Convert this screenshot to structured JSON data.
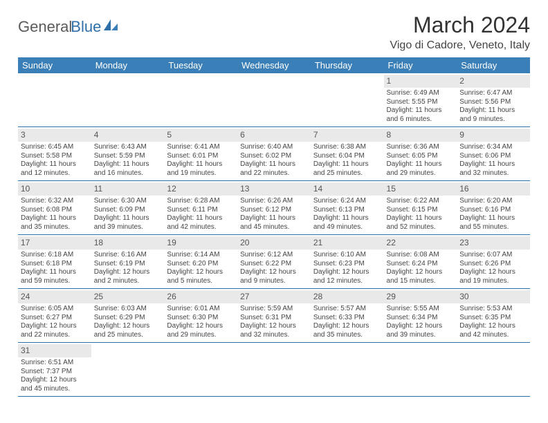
{
  "logo": {
    "text1": "General",
    "text2": "Blue"
  },
  "title": "March 2024",
  "location": "Vigo di Cadore, Veneto, Italy",
  "colors": {
    "header_bg": "#3b7fb8",
    "header_text": "#ffffff",
    "row_border": "#2f6fa8",
    "daynum_bg": "#e9e9e9",
    "logo_blue": "#2f6fa8",
    "logo_gray": "#5a5a5a",
    "page_bg": "#ffffff"
  },
  "typography": {
    "title_fontsize": 32,
    "location_fontsize": 16,
    "dayhead_fontsize": 13,
    "daynum_fontsize": 12,
    "cell_fontsize": 10
  },
  "dayNames": [
    "Sunday",
    "Monday",
    "Tuesday",
    "Wednesday",
    "Thursday",
    "Friday",
    "Saturday"
  ],
  "weeks": [
    [
      null,
      null,
      null,
      null,
      null,
      {
        "n": "1",
        "sr": "Sunrise: 6:49 AM",
        "ss": "Sunset: 5:55 PM",
        "dl": "Daylight: 11 hours and 6 minutes."
      },
      {
        "n": "2",
        "sr": "Sunrise: 6:47 AM",
        "ss": "Sunset: 5:56 PM",
        "dl": "Daylight: 11 hours and 9 minutes."
      }
    ],
    [
      {
        "n": "3",
        "sr": "Sunrise: 6:45 AM",
        "ss": "Sunset: 5:58 PM",
        "dl": "Daylight: 11 hours and 12 minutes."
      },
      {
        "n": "4",
        "sr": "Sunrise: 6:43 AM",
        "ss": "Sunset: 5:59 PM",
        "dl": "Daylight: 11 hours and 16 minutes."
      },
      {
        "n": "5",
        "sr": "Sunrise: 6:41 AM",
        "ss": "Sunset: 6:01 PM",
        "dl": "Daylight: 11 hours and 19 minutes."
      },
      {
        "n": "6",
        "sr": "Sunrise: 6:40 AM",
        "ss": "Sunset: 6:02 PM",
        "dl": "Daylight: 11 hours and 22 minutes."
      },
      {
        "n": "7",
        "sr": "Sunrise: 6:38 AM",
        "ss": "Sunset: 6:04 PM",
        "dl": "Daylight: 11 hours and 25 minutes."
      },
      {
        "n": "8",
        "sr": "Sunrise: 6:36 AM",
        "ss": "Sunset: 6:05 PM",
        "dl": "Daylight: 11 hours and 29 minutes."
      },
      {
        "n": "9",
        "sr": "Sunrise: 6:34 AM",
        "ss": "Sunset: 6:06 PM",
        "dl": "Daylight: 11 hours and 32 minutes."
      }
    ],
    [
      {
        "n": "10",
        "sr": "Sunrise: 6:32 AM",
        "ss": "Sunset: 6:08 PM",
        "dl": "Daylight: 11 hours and 35 minutes."
      },
      {
        "n": "11",
        "sr": "Sunrise: 6:30 AM",
        "ss": "Sunset: 6:09 PM",
        "dl": "Daylight: 11 hours and 39 minutes."
      },
      {
        "n": "12",
        "sr": "Sunrise: 6:28 AM",
        "ss": "Sunset: 6:11 PM",
        "dl": "Daylight: 11 hours and 42 minutes."
      },
      {
        "n": "13",
        "sr": "Sunrise: 6:26 AM",
        "ss": "Sunset: 6:12 PM",
        "dl": "Daylight: 11 hours and 45 minutes."
      },
      {
        "n": "14",
        "sr": "Sunrise: 6:24 AM",
        "ss": "Sunset: 6:13 PM",
        "dl": "Daylight: 11 hours and 49 minutes."
      },
      {
        "n": "15",
        "sr": "Sunrise: 6:22 AM",
        "ss": "Sunset: 6:15 PM",
        "dl": "Daylight: 11 hours and 52 minutes."
      },
      {
        "n": "16",
        "sr": "Sunrise: 6:20 AM",
        "ss": "Sunset: 6:16 PM",
        "dl": "Daylight: 11 hours and 55 minutes."
      }
    ],
    [
      {
        "n": "17",
        "sr": "Sunrise: 6:18 AM",
        "ss": "Sunset: 6:18 PM",
        "dl": "Daylight: 11 hours and 59 minutes."
      },
      {
        "n": "18",
        "sr": "Sunrise: 6:16 AM",
        "ss": "Sunset: 6:19 PM",
        "dl": "Daylight: 12 hours and 2 minutes."
      },
      {
        "n": "19",
        "sr": "Sunrise: 6:14 AM",
        "ss": "Sunset: 6:20 PM",
        "dl": "Daylight: 12 hours and 5 minutes."
      },
      {
        "n": "20",
        "sr": "Sunrise: 6:12 AM",
        "ss": "Sunset: 6:22 PM",
        "dl": "Daylight: 12 hours and 9 minutes."
      },
      {
        "n": "21",
        "sr": "Sunrise: 6:10 AM",
        "ss": "Sunset: 6:23 PM",
        "dl": "Daylight: 12 hours and 12 minutes."
      },
      {
        "n": "22",
        "sr": "Sunrise: 6:08 AM",
        "ss": "Sunset: 6:24 PM",
        "dl": "Daylight: 12 hours and 15 minutes."
      },
      {
        "n": "23",
        "sr": "Sunrise: 6:07 AM",
        "ss": "Sunset: 6:26 PM",
        "dl": "Daylight: 12 hours and 19 minutes."
      }
    ],
    [
      {
        "n": "24",
        "sr": "Sunrise: 6:05 AM",
        "ss": "Sunset: 6:27 PM",
        "dl": "Daylight: 12 hours and 22 minutes."
      },
      {
        "n": "25",
        "sr": "Sunrise: 6:03 AM",
        "ss": "Sunset: 6:29 PM",
        "dl": "Daylight: 12 hours and 25 minutes."
      },
      {
        "n": "26",
        "sr": "Sunrise: 6:01 AM",
        "ss": "Sunset: 6:30 PM",
        "dl": "Daylight: 12 hours and 29 minutes."
      },
      {
        "n": "27",
        "sr": "Sunrise: 5:59 AM",
        "ss": "Sunset: 6:31 PM",
        "dl": "Daylight: 12 hours and 32 minutes."
      },
      {
        "n": "28",
        "sr": "Sunrise: 5:57 AM",
        "ss": "Sunset: 6:33 PM",
        "dl": "Daylight: 12 hours and 35 minutes."
      },
      {
        "n": "29",
        "sr": "Sunrise: 5:55 AM",
        "ss": "Sunset: 6:34 PM",
        "dl": "Daylight: 12 hours and 39 minutes."
      },
      {
        "n": "30",
        "sr": "Sunrise: 5:53 AM",
        "ss": "Sunset: 6:35 PM",
        "dl": "Daylight: 12 hours and 42 minutes."
      }
    ],
    [
      {
        "n": "31",
        "sr": "Sunrise: 6:51 AM",
        "ss": "Sunset: 7:37 PM",
        "dl": "Daylight: 12 hours and 45 minutes."
      },
      null,
      null,
      null,
      null,
      null,
      null
    ]
  ]
}
